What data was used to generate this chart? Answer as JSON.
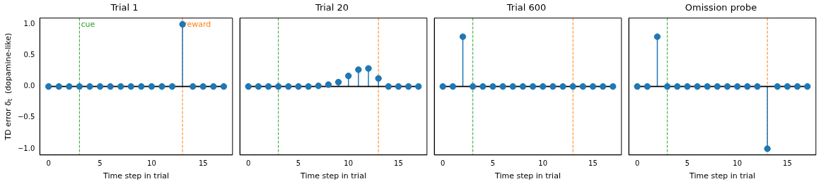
{
  "chart_data": [
    {
      "type": "lollipop",
      "title": "Trial 1",
      "xlabel": "Time step in trial",
      "ylabel": "TD error δ$_{t}$  (dopamine-like)",
      "x": [
        0,
        1,
        2,
        3,
        4,
        5,
        6,
        7,
        8,
        9,
        10,
        11,
        12,
        13,
        14,
        15,
        16,
        17
      ],
      "series": [
        {
          "color": "#1f77b4",
          "values": [
            0,
            0,
            0,
            0,
            0,
            0,
            0,
            0,
            0,
            0,
            0,
            0,
            0,
            1.0,
            0,
            0,
            0,
            0
          ]
        }
      ],
      "xlim": [
        -0.85,
        17.85
      ],
      "ylim": [
        -1.1,
        1.1
      ],
      "xticks": [
        0,
        5,
        10,
        15
      ],
      "yticks": [
        {
          "value": -1,
          "label": "−1.0"
        },
        {
          "value": -0.5,
          "label": "−0.5"
        },
        {
          "value": 0,
          "label": "0.0"
        },
        {
          "value": 0.5,
          "label": "0.5"
        },
        {
          "value": 1,
          "label": "1.0"
        }
      ],
      "ref_lines": [
        {
          "axis": "x",
          "value": 3,
          "label": "cue",
          "color": "#2ca02c",
          "line_style": "dashed"
        },
        {
          "axis": "x",
          "value": 13,
          "label": "reward",
          "color": "#ff7f0e",
          "line_style": "dashed"
        }
      ],
      "marker": "circle"
    },
    {
      "type": "lollipop",
      "title": "Trial 20",
      "xlabel": "Time step in trial",
      "x": [
        0,
        1,
        2,
        3,
        4,
        5,
        6,
        7,
        8,
        9,
        10,
        11,
        12,
        13,
        14,
        15,
        16,
        17
      ],
      "series": [
        {
          "color": "#1f77b4",
          "values": [
            0,
            0,
            0,
            0,
            0,
            0,
            0,
            0.01,
            0.03,
            0.07,
            0.17,
            0.27,
            0.29,
            0.13,
            0,
            0,
            0,
            0
          ]
        }
      ],
      "xlim": [
        -0.85,
        17.85
      ],
      "ylim": [
        -1.1,
        1.1
      ],
      "xticks": [
        0,
        5,
        10,
        15
      ],
      "yticks": [
        {
          "value": -1,
          "label": null
        },
        {
          "value": -0.5,
          "label": null
        },
        {
          "value": 0,
          "label": null
        },
        {
          "value": 0.5,
          "label": null
        },
        {
          "value": 1,
          "label": null
        }
      ],
      "ref_lines": [
        {
          "axis": "x",
          "value": 3,
          "color": "#2ca02c",
          "line_style": "dashed"
        },
        {
          "axis": "x",
          "value": 13,
          "color": "#ff7f0e",
          "line_style": "dashed"
        }
      ],
      "marker": "circle",
      "tick_labels": "x"
    },
    {
      "type": "lollipop",
      "title": "Trial 600",
      "xlabel": "Time step in trial",
      "x": [
        0,
        1,
        2,
        3,
        4,
        5,
        6,
        7,
        8,
        9,
        10,
        11,
        12,
        13,
        14,
        15,
        16,
        17
      ],
      "series": [
        {
          "color": "#1f77b4",
          "values": [
            0,
            0,
            0.8,
            0,
            0,
            0,
            0,
            0,
            0,
            0,
            0,
            0,
            0,
            0,
            0,
            0,
            0,
            0
          ]
        }
      ],
      "xlim": [
        -0.85,
        17.85
      ],
      "ylim": [
        -1.1,
        1.1
      ],
      "xticks": [
        0,
        5,
        10,
        15
      ],
      "yticks": [
        {
          "value": -1,
          "label": null
        },
        {
          "value": -0.5,
          "label": null
        },
        {
          "value": 0,
          "label": null
        },
        {
          "value": 0.5,
          "label": null
        },
        {
          "value": 1,
          "label": null
        }
      ],
      "ref_lines": [
        {
          "axis": "x",
          "value": 3,
          "color": "#2ca02c",
          "line_style": "dashed"
        },
        {
          "axis": "x",
          "value": 13,
          "color": "#ff7f0e",
          "line_style": "dashed"
        }
      ],
      "marker": "circle",
      "tick_labels": "x"
    },
    {
      "type": "lollipop",
      "title": "Omission probe",
      "xlabel": "Time step in trial",
      "x": [
        0,
        1,
        2,
        3,
        4,
        5,
        6,
        7,
        8,
        9,
        10,
        11,
        12,
        13,
        14,
        15,
        16,
        17
      ],
      "series": [
        {
          "color": "#1f77b4",
          "values": [
            0,
            0,
            0.8,
            0,
            0,
            0,
            0,
            0,
            0,
            0,
            0,
            0,
            0,
            -1.0,
            0,
            0,
            0,
            0
          ]
        }
      ],
      "xlim": [
        -0.85,
        17.85
      ],
      "ylim": [
        -1.1,
        1.1
      ],
      "xticks": [
        0,
        5,
        10,
        15
      ],
      "yticks": [
        {
          "value": -1,
          "label": null
        },
        {
          "value": -0.5,
          "label": null
        },
        {
          "value": 0,
          "label": null
        },
        {
          "value": 0.5,
          "label": null
        },
        {
          "value": 1,
          "label": null
        }
      ],
      "ref_lines": [
        {
          "axis": "x",
          "value": 3,
          "color": "#2ca02c",
          "line_style": "dashed"
        },
        {
          "axis": "x",
          "value": 13,
          "color": "#ff7f0e",
          "line_style": "dashed"
        }
      ],
      "marker": "circle",
      "tick_labels": "x"
    }
  ]
}
